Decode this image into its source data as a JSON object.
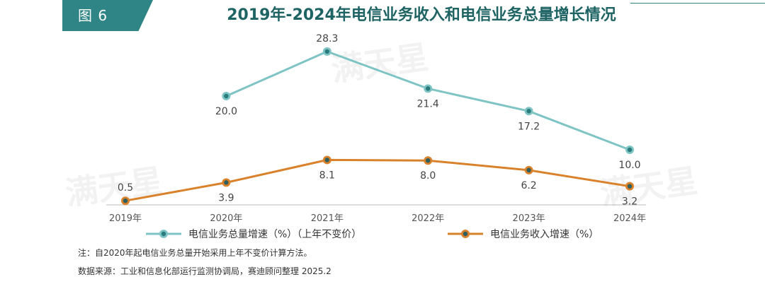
{
  "header": {
    "figure_label": "图 6",
    "title": "2019年-2024年电信业务收入和电信业务总量增长情况"
  },
  "watermark": "满天星",
  "chart_data": {
    "type": "line",
    "categories": [
      "2019年",
      "2020年",
      "2021年",
      "2022年",
      "2023年",
      "2024年"
    ],
    "series": [
      {
        "name": "电信业务总量增速（%）（上年不变价）",
        "values": [
          null,
          20.0,
          28.3,
          21.4,
          17.2,
          10.0
        ],
        "labels": [
          "",
          "20.0",
          "28.3",
          "21.4",
          "17.2",
          "10.0"
        ],
        "color": "#7fc4c4",
        "marker_color": "#2a7b7b"
      },
      {
        "name": "电信业务收入增速（%）",
        "values": [
          0.5,
          3.9,
          8.1,
          8.0,
          6.2,
          3.2
        ],
        "labels": [
          "0.5",
          "3.9",
          "8.1",
          "8.0",
          "6.2",
          "3.2"
        ],
        "color": "#d9822b",
        "marker_color": "#2f5f5f"
      }
    ],
    "ylim": [
      0,
      30
    ],
    "grid": false,
    "legend": "bottom",
    "xlabel": "",
    "ylabel": ""
  },
  "notes": {
    "note": "注：自2020年起电信业务总量开始采用上年不变价计算方法。",
    "source": "数据来源：工业和信息化部运行监测协调局，赛迪顾问整理 2025.2"
  }
}
